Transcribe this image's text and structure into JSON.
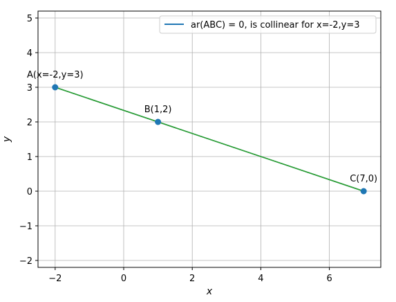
{
  "chart_data": {
    "type": "line",
    "title": "",
    "xlabel": "x",
    "ylabel": "y",
    "xlim": [
      -2.5,
      7.5
    ],
    "ylim": [
      -2.2,
      5.2
    ],
    "xticks": [
      -2,
      0,
      2,
      4,
      6
    ],
    "yticks": [
      -2,
      -1,
      0,
      1,
      2,
      3,
      4,
      5
    ],
    "xtick_labels": [
      "−2",
      "0",
      "2",
      "4",
      "6"
    ],
    "ytick_labels": [
      "−2",
      "−1",
      "0",
      "1",
      "2",
      "3",
      "4",
      "5"
    ],
    "grid": true,
    "series": [
      {
        "name": "ar(ABC) = 0, is collinear for x=-2,y=3",
        "x": [
          -2,
          7
        ],
        "y": [
          3,
          0
        ],
        "color": "#1f77b4"
      },
      {
        "name": "",
        "x": [
          -2,
          1,
          7
        ],
        "y": [
          3,
          2,
          0
        ],
        "color": "#2ca02c"
      }
    ],
    "points": [
      {
        "label": "A(x=-2,y=3)",
        "x": -2,
        "y": 3
      },
      {
        "label": "B(1,2)",
        "x": 1,
        "y": 2
      },
      {
        "label": "C(7,0)",
        "x": 7,
        "y": 0
      }
    ],
    "point_color": "#1f77b4",
    "legend": {
      "position": "top-right",
      "label": "ar(ABC) = 0, is collinear for x=-2,y=3"
    }
  }
}
